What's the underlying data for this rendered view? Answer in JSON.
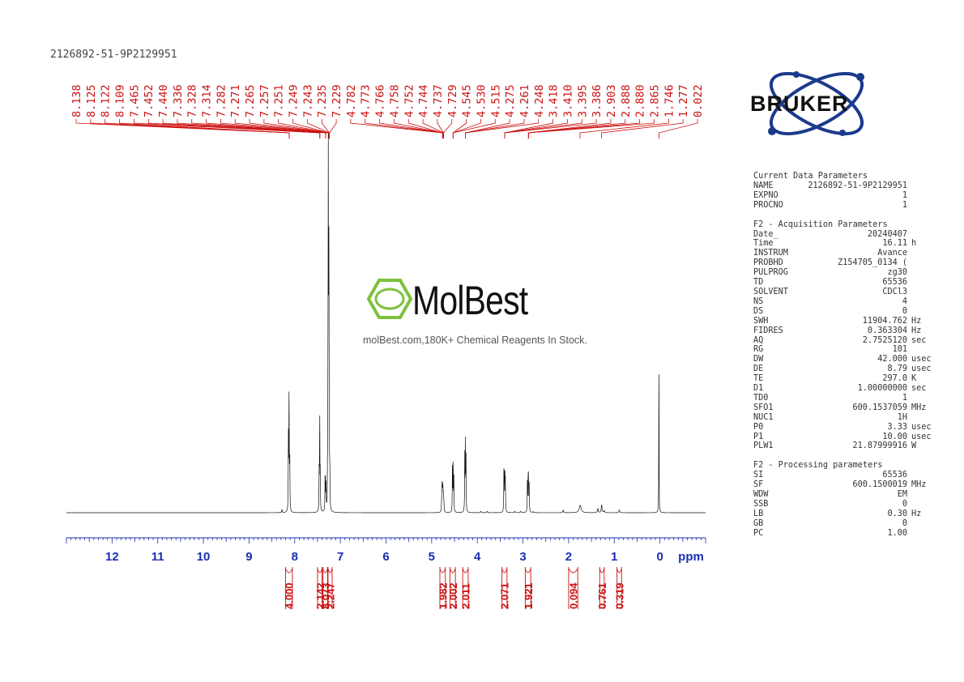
{
  "sample_id": "2126892-51-9P2129951",
  "watermark": {
    "name": "MolBest",
    "tagline": "molBest.com,180K+ Chemical Reagents In Stock.",
    "color": "#7cc23a"
  },
  "logo": {
    "name": "BRUKER",
    "color": "#1b3a8c"
  },
  "colors": {
    "axis": "#1a2fb0",
    "peaks": "#cc1111",
    "spectrum": "#111111"
  },
  "params": {
    "current": {
      "title": "Current Data Parameters",
      "rows": [
        {
          "k": "NAME",
          "v": "2126892-51-9P2129951",
          "u": ""
        },
        {
          "k": "EXPNO",
          "v": "1",
          "u": ""
        },
        {
          "k": "PROCNO",
          "v": "1",
          "u": ""
        }
      ]
    },
    "acq": {
      "title": "F2 - Acquisition Parameters",
      "rows": [
        {
          "k": "Date_",
          "v": "20240407",
          "u": ""
        },
        {
          "k": "Time",
          "v": "16.11",
          "u": "h"
        },
        {
          "k": "INSTRUM",
          "v": "Avance",
          "u": ""
        },
        {
          "k": "PROBHD",
          "v": "Z154705_0134 (",
          "u": ""
        },
        {
          "k": "PULPROG",
          "v": "zg30",
          "u": ""
        },
        {
          "k": "TD",
          "v": "65536",
          "u": ""
        },
        {
          "k": "SOLVENT",
          "v": "CDCl3",
          "u": ""
        },
        {
          "k": "NS",
          "v": "4",
          "u": ""
        },
        {
          "k": "DS",
          "v": "0",
          "u": ""
        },
        {
          "k": "SWH",
          "v": "11904.762",
          "u": "Hz"
        },
        {
          "k": "FIDRES",
          "v": "0.363304",
          "u": "Hz"
        },
        {
          "k": "AQ",
          "v": "2.7525120",
          "u": "sec"
        },
        {
          "k": "RG",
          "v": "101",
          "u": ""
        },
        {
          "k": "DW",
          "v": "42.000",
          "u": "usec"
        },
        {
          "k": "DE",
          "v": "8.79",
          "u": "usec"
        },
        {
          "k": "TE",
          "v": "297.0",
          "u": "K"
        },
        {
          "k": "D1",
          "v": "1.00000000",
          "u": "sec"
        },
        {
          "k": "TD0",
          "v": "1",
          "u": ""
        },
        {
          "k": "SFO1",
          "v": "600.1537059",
          "u": "MHz"
        },
        {
          "k": "NUC1",
          "v": "1H",
          "u": ""
        },
        {
          "k": "P0",
          "v": "3.33",
          "u": "usec"
        },
        {
          "k": "P1",
          "v": "10.00",
          "u": "usec"
        },
        {
          "k": "PLW1",
          "v": "21.87999916",
          "u": "W"
        }
      ]
    },
    "proc": {
      "title": "F2 - Processing parameters",
      "rows": [
        {
          "k": "SI",
          "v": "65536",
          "u": ""
        },
        {
          "k": "SF",
          "v": "600.1500019",
          "u": "MHz"
        },
        {
          "k": "WDW",
          "v": "EM",
          "u": ""
        },
        {
          "k": "SSB",
          "v": "0",
          "u": ""
        },
        {
          "k": "LB",
          "v": "0.30",
          "u": "Hz"
        },
        {
          "k": "GB",
          "v": "0",
          "u": ""
        },
        {
          "k": "PC",
          "v": "1.00",
          "u": ""
        }
      ]
    }
  },
  "chart_data": {
    "type": "line",
    "title": "",
    "xlabel": "ppm",
    "x_reversed": true,
    "xlim": [
      13.0,
      -1.0
    ],
    "ticks": [
      12,
      11,
      10,
      9,
      8,
      7,
      6,
      5,
      4,
      3,
      2,
      1,
      0
    ],
    "peak_labels": [
      "8.138",
      "8.125",
      "8.122",
      "8.109",
      "7.465",
      "7.452",
      "7.440",
      "7.336",
      "7.328",
      "7.314",
      "7.282",
      "7.271",
      "7.265",
      "7.257",
      "7.251",
      "7.249",
      "7.243",
      "7.235",
      "7.229",
      "4.782",
      "4.773",
      "4.766",
      "4.758",
      "4.752",
      "4.744",
      "4.737",
      "4.729",
      "4.545",
      "4.530",
      "4.515",
      "4.275",
      "4.261",
      "4.248",
      "3.418",
      "3.410",
      "3.395",
      "3.386",
      "2.903",
      "2.888",
      "2.880",
      "2.865",
      "1.746",
      "1.277",
      "0.022"
    ],
    "peak_anchor_ppm": [
      8.12,
      8.12,
      8.12,
      8.12,
      7.45,
      7.45,
      7.45,
      7.32,
      7.32,
      7.32,
      7.26,
      7.26,
      7.26,
      7.26,
      7.26,
      7.26,
      7.24,
      7.24,
      7.24,
      4.76,
      4.76,
      4.76,
      4.76,
      4.76,
      4.74,
      4.74,
      4.74,
      4.53,
      4.53,
      4.53,
      4.26,
      4.26,
      4.26,
      3.4,
      3.4,
      3.4,
      3.4,
      2.88,
      2.88,
      2.88,
      2.88,
      1.75,
      1.28,
      0.02
    ],
    "integrals": [
      {
        "value": "4.000",
        "from": 8.2,
        "to": 8.05
      },
      {
        "value": "2.142",
        "from": 7.5,
        "to": 7.4
      },
      {
        "value": "8.073",
        "from": 7.38,
        "to": 7.28
      },
      {
        "value": "2.247",
        "from": 7.27,
        "to": 7.18
      },
      {
        "value": "1.982",
        "from": 4.82,
        "to": 4.7
      },
      {
        "value": "2.002",
        "from": 4.6,
        "to": 4.48
      },
      {
        "value": "2.011",
        "from": 4.32,
        "to": 4.2
      },
      {
        "value": "2.071",
        "from": 3.46,
        "to": 3.35
      },
      {
        "value": "1.921",
        "from": 2.95,
        "to": 2.83
      },
      {
        "value": "0.094",
        "from": 2.0,
        "to": 1.8
      },
      {
        "value": "0.761",
        "from": 1.32,
        "to": 1.22
      },
      {
        "value": "0.319",
        "from": 0.94,
        "to": 0.84
      }
    ],
    "peaks": [
      {
        "ppm": 8.138,
        "h": 0.22,
        "w": 0.004
      },
      {
        "ppm": 8.125,
        "h": 0.2,
        "w": 0.004
      },
      {
        "ppm": 8.122,
        "h": 0.2,
        "w": 0.004
      },
      {
        "ppm": 8.109,
        "h": 0.18,
        "w": 0.004
      },
      {
        "ppm": 8.28,
        "h": 0.01,
        "w": 0.006
      },
      {
        "ppm": 7.465,
        "h": 0.12,
        "w": 0.004
      },
      {
        "ppm": 7.452,
        "h": 0.3,
        "w": 0.004
      },
      {
        "ppm": 7.44,
        "h": 0.12,
        "w": 0.004
      },
      {
        "ppm": 7.336,
        "h": 0.08,
        "w": 0.004
      },
      {
        "ppm": 7.328,
        "h": 0.1,
        "w": 0.004
      },
      {
        "ppm": 7.314,
        "h": 0.08,
        "w": 0.004
      },
      {
        "ppm": 7.282,
        "h": 0.1,
        "w": 0.003
      },
      {
        "ppm": 7.271,
        "h": 0.4,
        "w": 0.003
      },
      {
        "ppm": 7.265,
        "h": 1.0,
        "w": 0.003
      },
      {
        "ppm": 7.257,
        "h": 0.55,
        "w": 0.003
      },
      {
        "ppm": 7.251,
        "h": 0.45,
        "w": 0.003
      },
      {
        "ppm": 7.249,
        "h": 0.3,
        "w": 0.003
      },
      {
        "ppm": 7.243,
        "h": 0.22,
        "w": 0.003
      },
      {
        "ppm": 7.235,
        "h": 0.1,
        "w": 0.003
      },
      {
        "ppm": 7.229,
        "h": 0.08,
        "w": 0.003
      },
      {
        "ppm": 4.782,
        "h": 0.03,
        "w": 0.004
      },
      {
        "ppm": 4.773,
        "h": 0.07,
        "w": 0.004
      },
      {
        "ppm": 4.766,
        "h": 0.06,
        "w": 0.004
      },
      {
        "ppm": 4.758,
        "h": 0.05,
        "w": 0.004
      },
      {
        "ppm": 4.752,
        "h": 0.05,
        "w": 0.004
      },
      {
        "ppm": 4.744,
        "h": 0.04,
        "w": 0.004
      },
      {
        "ppm": 4.737,
        "h": 0.03,
        "w": 0.004
      },
      {
        "ppm": 4.729,
        "h": 0.02,
        "w": 0.004
      },
      {
        "ppm": 4.545,
        "h": 0.13,
        "w": 0.004
      },
      {
        "ppm": 4.53,
        "h": 0.16,
        "w": 0.004
      },
      {
        "ppm": 4.515,
        "h": 0.11,
        "w": 0.004
      },
      {
        "ppm": 4.275,
        "h": 0.17,
        "w": 0.004
      },
      {
        "ppm": 4.261,
        "h": 0.2,
        "w": 0.004
      },
      {
        "ppm": 4.248,
        "h": 0.16,
        "w": 0.004
      },
      {
        "ppm": 3.92,
        "h": 0.004,
        "w": 0.01
      },
      {
        "ppm": 3.78,
        "h": 0.004,
        "w": 0.01
      },
      {
        "ppm": 3.418,
        "h": 0.11,
        "w": 0.004
      },
      {
        "ppm": 3.41,
        "h": 0.1,
        "w": 0.004
      },
      {
        "ppm": 3.395,
        "h": 0.11,
        "w": 0.004
      },
      {
        "ppm": 3.386,
        "h": 0.09,
        "w": 0.004
      },
      {
        "ppm": 3.18,
        "h": 0.004,
        "w": 0.01
      },
      {
        "ppm": 3.05,
        "h": 0.004,
        "w": 0.01
      },
      {
        "ppm": 2.903,
        "h": 0.09,
        "w": 0.004
      },
      {
        "ppm": 2.888,
        "h": 0.1,
        "w": 0.004
      },
      {
        "ppm": 2.88,
        "h": 0.1,
        "w": 0.004
      },
      {
        "ppm": 2.865,
        "h": 0.09,
        "w": 0.004
      },
      {
        "ppm": 2.78,
        "h": 0.003,
        "w": 0.01
      },
      {
        "ppm": 2.12,
        "h": 0.008,
        "w": 0.008
      },
      {
        "ppm": 1.746,
        "h": 0.022,
        "w": 0.025
      },
      {
        "ppm": 1.36,
        "h": 0.012,
        "w": 0.01
      },
      {
        "ppm": 1.277,
        "h": 0.024,
        "w": 0.01
      },
      {
        "ppm": 1.22,
        "h": 0.006,
        "w": 0.01
      },
      {
        "ppm": 0.89,
        "h": 0.008,
        "w": 0.01
      },
      {
        "ppm": 0.022,
        "h": 0.55,
        "w": 0.003
      }
    ]
  }
}
